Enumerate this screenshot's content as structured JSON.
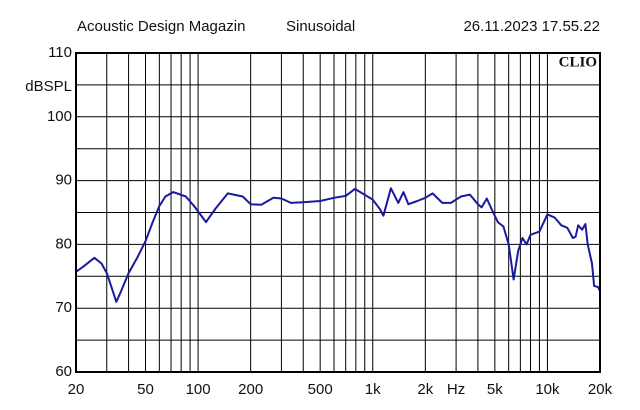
{
  "chart_data": {
    "type": "line",
    "header": [
      "Acoustic Design Magazin",
      "Sinusoidal",
      "26.11.2023 17.55.22"
    ],
    "ylabel": "dBSPL",
    "xlabel": "Hz",
    "badge": "CLIO",
    "xscale": "log",
    "xlim": [
      20,
      20000
    ],
    "ylim": [
      60,
      110
    ],
    "yticks": [
      60,
      70,
      80,
      90,
      100,
      110
    ],
    "ygrid": [
      65,
      75,
      85,
      95,
      105
    ],
    "xticks": [
      20,
      50,
      100,
      200,
      500,
      {
        "value": 1000,
        "label": "1k"
      },
      {
        "value": 2000,
        "label": "2k"
      },
      {
        "value": 5000,
        "label": "5k"
      },
      {
        "value": 10000,
        "label": "10k"
      },
      {
        "value": 20000,
        "label": "20k"
      }
    ],
    "xlabel_at": 3000,
    "xgrid": [
      30,
      40,
      60,
      70,
      80,
      90,
      300,
      400,
      600,
      700,
      800,
      900,
      3000,
      4000,
      6000,
      7000,
      8000,
      9000
    ],
    "x": [
      20,
      22,
      25.5,
      28,
      30,
      34,
      36,
      40,
      45,
      50,
      55,
      60,
      65,
      72,
      85,
      95,
      111,
      125,
      148,
      180,
      200,
      230,
      270,
      300,
      340,
      400,
      500,
      600,
      700,
      790,
      1000,
      1100,
      1150,
      1270,
      1400,
      1500,
      1600,
      1800,
      2000,
      2200,
      2500,
      2800,
      3200,
      3600,
      4000,
      4200,
      4500,
      4800,
      5200,
      5600,
      6000,
      6400,
      6800,
      7200,
      7600,
      8000,
      9000,
      10000,
      11000,
      12000,
      13000,
      14000,
      14500,
      15000,
      15800,
      16500,
      17000,
      18000,
      18500,
      19500,
      20000
    ],
    "series": [
      {
        "color": "#1a1a9e",
        "values": [
          75.7,
          76.5,
          77.9,
          77,
          75.5,
          71,
          72.5,
          75.5,
          78,
          80.5,
          83.5,
          86,
          87.5,
          88.2,
          87.5,
          86,
          83.5,
          85.5,
          88,
          87.5,
          86.3,
          86.2,
          87.3,
          87.2,
          86.5,
          86.6,
          86.8,
          87.3,
          87.6,
          88.7,
          87,
          85.5,
          84.5,
          88.8,
          86.5,
          88.2,
          86.3,
          86.8,
          87.3,
          88,
          86.5,
          86.5,
          87.5,
          87.8,
          86.3,
          85.8,
          87.2,
          85.5,
          83.5,
          82.8,
          80,
          74.5,
          79,
          81,
          80,
          81.5,
          82,
          84.7,
          84.2,
          83,
          82.6,
          81,
          81.2,
          83,
          82.3,
          83.2,
          80,
          77,
          73.5,
          73.3,
          72.7
        ]
      }
    ]
  }
}
